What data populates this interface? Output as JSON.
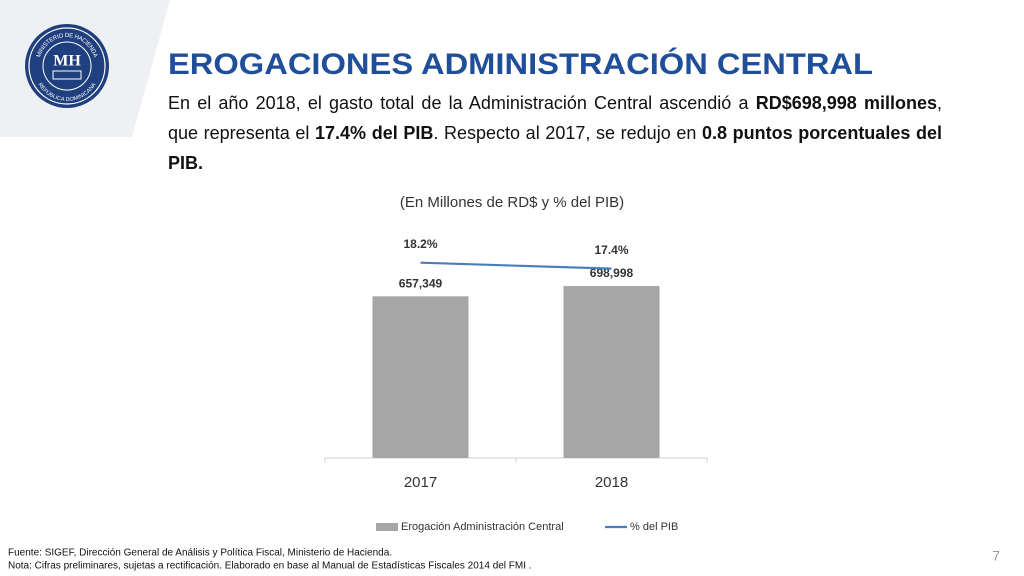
{
  "header": {
    "title": "EROGACIONES ADMINISTRACIÓN CENTRAL",
    "logo": {
      "initials": "MH",
      "top_text": "MINISTERIO DE HACIENDA",
      "bottom_text": "REPÚBLICA DOMINICANA"
    }
  },
  "intro": {
    "parts": [
      {
        "text": "En el año 2018, el gasto total de la Administración Central ascendió a ",
        "bold": false
      },
      {
        "text": "RD$698,998 millones",
        "bold": true
      },
      {
        "text": ", que representa el ",
        "bold": false
      },
      {
        "text": "17.4% del PIB",
        "bold": true
      },
      {
        "text": ". Respecto al 2017, se redujo en ",
        "bold": false
      },
      {
        "text": "0.8 puntos porcentuales del PIB.",
        "bold": true
      }
    ]
  },
  "chart_data": {
    "type": "bar-line",
    "subtitle": "(En Millones de RD$ y % del PIB)",
    "categories": [
      "2017",
      "2018"
    ],
    "ylim": [
      0,
      1000000
    ],
    "y2lim": [
      -8,
      25
    ],
    "series": [
      {
        "name": "Erogación Administración Central",
        "type": "bar",
        "color": "#a6a6a6",
        "values": [
          657349,
          698998
        ],
        "value_labels": [
          "657,349",
          "698,998"
        ]
      },
      {
        "name": "% del PIB",
        "type": "line",
        "axis": "y2",
        "color": "#4a7ebb",
        "values": [
          18.2,
          17.4
        ],
        "value_labels": [
          "18.2%",
          "17.4%"
        ]
      }
    ],
    "legend": "bottom"
  },
  "footer": {
    "notes": [
      "Fuente: SIGEF, Dirección General de Análisis y Política Fiscal, Ministerio de Hacienda.",
      "Nota: Cifras preliminares, sujetas a rectificación. Elaborado en base al Manual  de Estadísticas Fiscales  2014 del FMI ."
    ],
    "page_number": "7"
  }
}
